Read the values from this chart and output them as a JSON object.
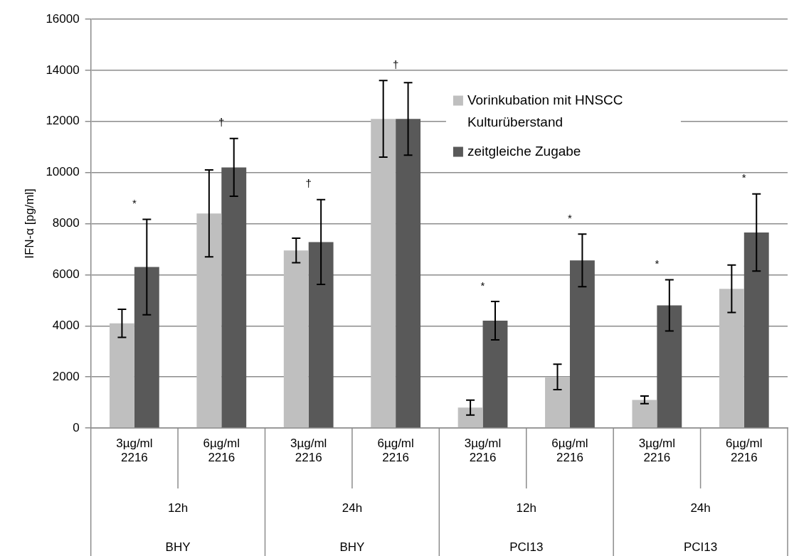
{
  "chart_data": {
    "type": "bar",
    "ylabel": "IFN-α [pg/ml]",
    "categories": [
      "3µg/ml 2216",
      "6µg/ml 2216",
      "3µg/ml 2216",
      "6µg/ml 2216",
      "3µg/ml 2216",
      "6µg/ml 2216",
      "3µg/ml 2216",
      "6µg/ml 2216"
    ],
    "series": [
      {
        "name": "Vorinkubation mit HNSCC Kulturüberstand",
        "color": "#bfbfbf",
        "values": [
          4100,
          8400,
          6950,
          12100,
          800,
          2000,
          1100,
          5450
        ],
        "errors": [
          550,
          1700,
          480,
          1500,
          290,
          500,
          150,
          930
        ]
      },
      {
        "name": "zeitgleiche Zugabe",
        "color": "#595959",
        "values": [
          6300,
          10200,
          7280,
          12100,
          4200,
          6560,
          4800,
          7650
        ],
        "errors": [
          1870,
          1130,
          1660,
          1420,
          750,
          1030,
          1000,
          1510
        ]
      }
    ],
    "annotations": [
      "*",
      "†",
      "†",
      "†",
      "*",
      "*",
      "*",
      "*",
      "12h",
      "24h",
      "12h",
      "24h",
      "BHY",
      "BHY",
      "PCI13",
      "PCI13"
    ],
    "ylim": [
      0,
      16000
    ],
    "yticks": [
      0,
      2000,
      4000,
      6000,
      8000,
      10000,
      12000,
      14000,
      16000
    ],
    "grid": "y",
    "legend": "top right"
  }
}
